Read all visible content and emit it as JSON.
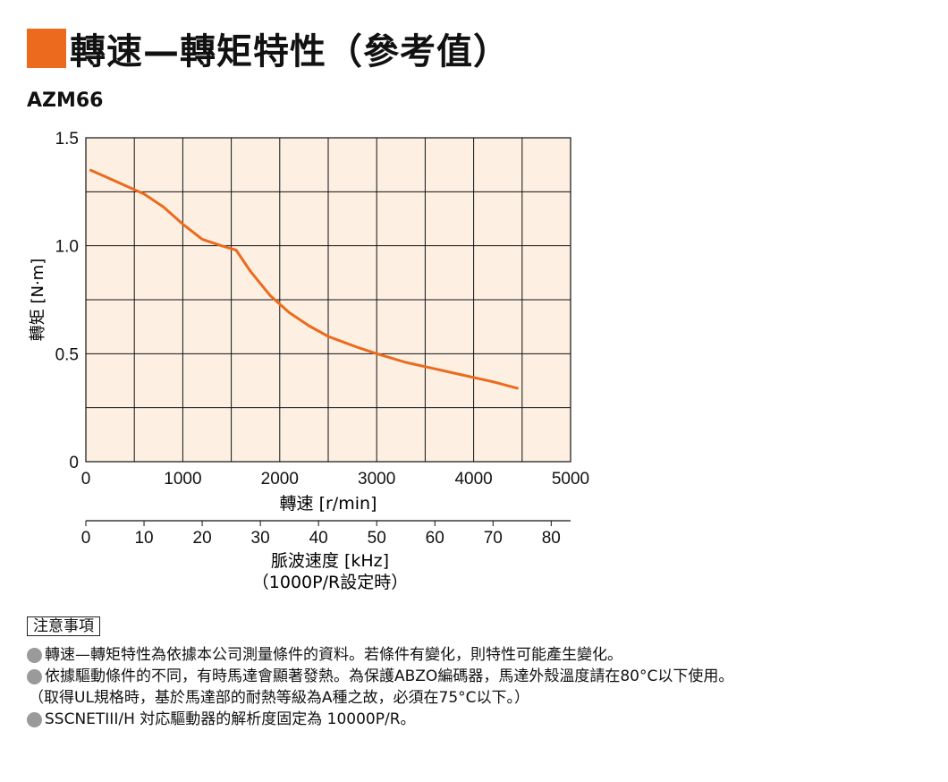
{
  "title": "轉速—轉矩特性（參考值）",
  "model": "AZM66",
  "chart_data": {
    "type": "line",
    "ylabel": "轉矩 [N·m]",
    "xlabel": "轉速 [r/min]",
    "x_ticks": [
      "0",
      "1000",
      "2000",
      "3000",
      "4000",
      "5000"
    ],
    "y_ticks": [
      "0",
      "0.5",
      "1.0",
      "1.5"
    ],
    "xlim": [
      0,
      5000
    ],
    "ylim": [
      0,
      1.5
    ],
    "grid": true,
    "series": [
      {
        "color": "#ec6a1e",
        "x": [
          50,
          200,
          400,
          600,
          800,
          1000,
          1200,
          1400,
          1550,
          1700,
          1900,
          2100,
          2300,
          2500,
          2800,
          3000,
          3300,
          3600,
          3900,
          4200,
          4450
        ],
        "y": [
          1.35,
          1.32,
          1.28,
          1.24,
          1.18,
          1.1,
          1.03,
          1.0,
          0.98,
          0.88,
          0.77,
          0.69,
          0.63,
          0.58,
          0.53,
          0.5,
          0.46,
          0.43,
          0.4,
          0.37,
          0.34
        ]
      }
    ],
    "secondary_axis": {
      "label_line1": "脈波速度 [kHz]",
      "label_line2": "（1000P/R設定時）",
      "ticks": [
        "0",
        "10",
        "20",
        "30",
        "40",
        "50",
        "60",
        "70",
        "80"
      ]
    }
  },
  "notes": {
    "heading": "注意事項",
    "lines": [
      "轉速—轉矩特性為依據本公司測量條件的資料。若條件有變化，則特性可能產生變化。",
      "依據驅動條件的不同，有時馬達會顯著發熱。為保護ABZO編碼器，馬達外殼溫度請在80°C以下使用。",
      "SSCNETIII/H 対応驅動器的解析度固定為 10000P/R。"
    ],
    "continuation": "（取得UL規格時，基於馬達部的耐熱等級為A種之故，必須在75°C以下。）"
  },
  "colors": {
    "accent": "#ec6a1e",
    "plot_bg": "#fdf0e2",
    "bullet": "#9a9a9a"
  }
}
